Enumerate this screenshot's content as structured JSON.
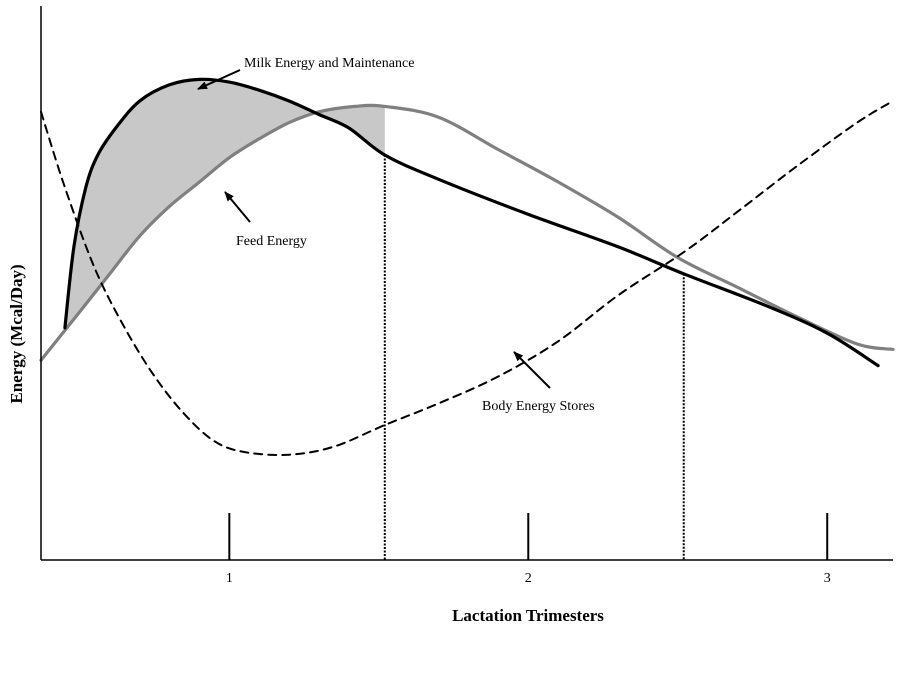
{
  "chart_data": {
    "type": "line",
    "title": "",
    "xlabel": "Lactation Trimesters",
    "ylabel": "Energy (Mcal/Day)",
    "xlim": [
      0.37,
      3.22
    ],
    "ylim": [
      0,
      10
    ],
    "x_ticks": [
      1,
      2,
      3
    ],
    "x_tick_labels": [
      "1",
      "2",
      "3"
    ],
    "grid": false,
    "legend": "none",
    "vertical_markers": [
      1.52,
      2.52
    ],
    "shaded_region": {
      "between": [
        "Milk Energy and Maintenance",
        "Feed Energy"
      ],
      "x_range": [
        0.45,
        1.52
      ],
      "color": "#c8c8c8"
    },
    "series": [
      {
        "name": "Milk Energy and Maintenance",
        "color": "#000000",
        "style": "solid",
        "x": [
          0.45,
          0.48,
          0.52,
          0.56,
          0.62,
          0.7,
          0.8,
          0.9,
          1.0,
          1.1,
          1.2,
          1.3,
          1.4,
          1.52,
          1.7,
          2.0,
          2.3,
          2.52,
          2.8,
          3.0,
          3.17
        ],
        "y": [
          4.3,
          5.8,
          6.9,
          7.5,
          8.0,
          8.5,
          8.8,
          8.9,
          8.85,
          8.7,
          8.5,
          8.25,
          8.0,
          7.5,
          7.05,
          6.4,
          5.8,
          5.3,
          4.7,
          4.2,
          3.6
        ]
      },
      {
        "name": "Feed Energy",
        "color": "#808080",
        "style": "solid",
        "x": [
          0.37,
          0.5,
          0.6,
          0.7,
          0.8,
          0.9,
          1.0,
          1.1,
          1.2,
          1.3,
          1.42,
          1.52,
          1.7,
          1.9,
          2.1,
          2.3,
          2.5,
          2.7,
          2.9,
          3.1,
          3.22
        ],
        "y": [
          3.7,
          4.6,
          5.3,
          6.0,
          6.55,
          7.0,
          7.45,
          7.8,
          8.1,
          8.3,
          8.4,
          8.4,
          8.2,
          7.6,
          7.0,
          6.35,
          5.6,
          5.05,
          4.5,
          4.0,
          3.9
        ]
      },
      {
        "name": "Body Energy Stores",
        "color": "#000000",
        "style": "dashed",
        "x": [
          0.37,
          0.45,
          0.55,
          0.65,
          0.75,
          0.85,
          0.95,
          1.05,
          1.2,
          1.35,
          1.52,
          1.7,
          1.9,
          2.1,
          2.3,
          2.52,
          2.7,
          2.9,
          3.1,
          3.22
        ],
        "y": [
          8.3,
          6.9,
          5.4,
          4.3,
          3.4,
          2.7,
          2.2,
          2.0,
          1.95,
          2.1,
          2.5,
          2.9,
          3.4,
          4.05,
          4.9,
          5.7,
          6.45,
          7.3,
          8.1,
          8.5
        ]
      }
    ],
    "annotations": [
      {
        "text": "Milk Energy and Maintenance",
        "points_to": "Milk Energy and Maintenance"
      },
      {
        "text": "Feed Energy",
        "points_to": "Feed Energy"
      },
      {
        "text": "Body Energy Stores",
        "points_to": "Body Energy Stores"
      }
    ]
  }
}
